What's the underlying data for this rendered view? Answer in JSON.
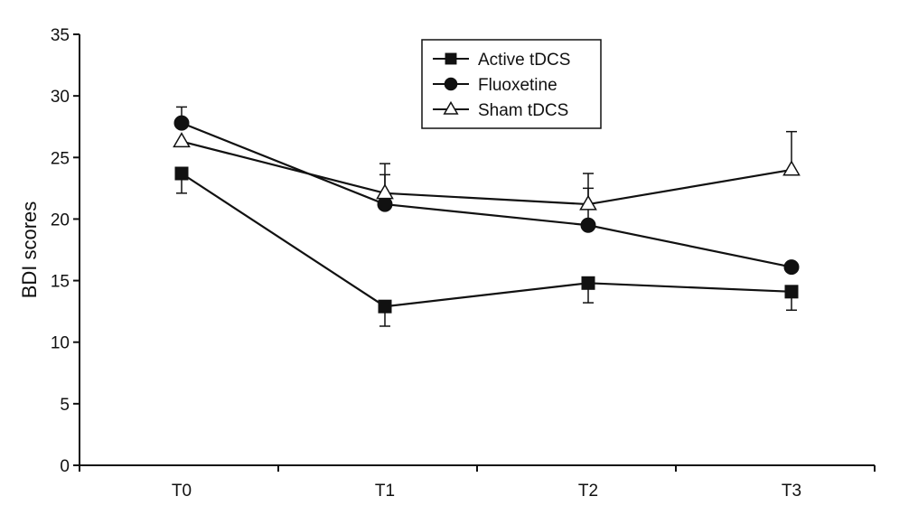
{
  "chart_data": {
    "type": "line",
    "title": "",
    "xlabel": "",
    "ylabel": "BDI scores",
    "categories": [
      "T0",
      "T1",
      "T2",
      "T3"
    ],
    "ylim": [
      0,
      35
    ],
    "yticks": [
      0,
      5,
      10,
      15,
      20,
      25,
      30,
      35
    ],
    "grid": false,
    "legend_position": "top-center",
    "series": [
      {
        "name": "Active tDCS",
        "marker": "square-filled",
        "color": "#111111",
        "values": [
          23.7,
          12.9,
          14.8,
          14.1
        ],
        "error": [
          1.6,
          1.6,
          1.6,
          1.5
        ]
      },
      {
        "name": "Fluoxetine",
        "marker": "circle-filled",
        "color": "#111111",
        "values": [
          27.8,
          21.2,
          19.5,
          16.1
        ],
        "error": [
          1.3,
          2.4,
          3.0,
          0
        ]
      },
      {
        "name": "Sham tDCS",
        "marker": "triangle-open",
        "color": "#111111",
        "values": [
          26.3,
          22.1,
          21.2,
          24.0
        ],
        "error": [
          0,
          2.4,
          2.5,
          3.1
        ]
      }
    ]
  }
}
